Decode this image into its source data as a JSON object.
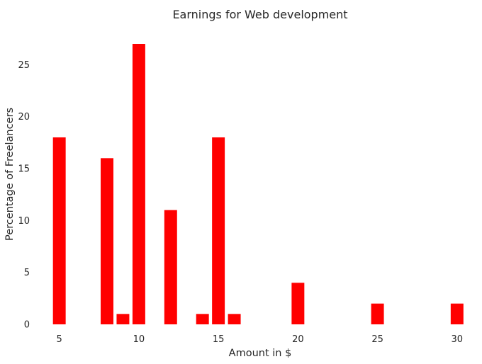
{
  "chart_data": {
    "type": "bar",
    "title": "Earnings for Web development",
    "xlabel": "Amount in $",
    "ylabel": "Percentage of Freelancers",
    "x": [
      5,
      8,
      9,
      10,
      12,
      14,
      15,
      16,
      20,
      25,
      30
    ],
    "values": [
      18,
      16,
      1,
      27,
      11,
      1,
      18,
      1,
      4,
      2,
      2
    ],
    "bar_width": 0.8,
    "xlim": [
      3.5,
      31.3
    ],
    "ylim": [
      0,
      28.5
    ],
    "xticks": [
      5,
      10,
      15,
      20,
      25,
      30
    ],
    "yticks": [
      0,
      5,
      10,
      15,
      20,
      25
    ],
    "grid": false,
    "bar_color": "#ff0000",
    "background": "#ffffff"
  }
}
